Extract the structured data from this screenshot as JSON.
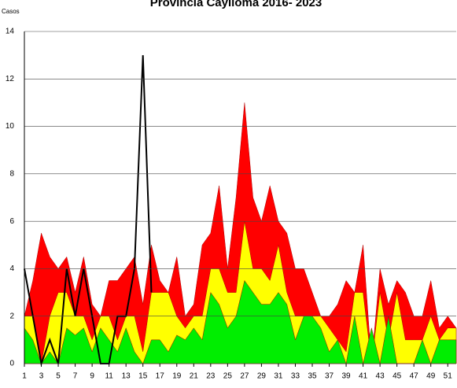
{
  "chart_data": {
    "type": "area",
    "title": "Provincia Caylloma 2016- 2023",
    "y_label": "Casos",
    "x": [
      1,
      2,
      3,
      4,
      5,
      6,
      7,
      8,
      9,
      10,
      11,
      12,
      13,
      14,
      15,
      16,
      17,
      18,
      19,
      20,
      21,
      22,
      23,
      24,
      25,
      26,
      27,
      28,
      29,
      30,
      31,
      32,
      33,
      34,
      35,
      36,
      37,
      38,
      39,
      40,
      41,
      42,
      43,
      44,
      45,
      46,
      47,
      48,
      49,
      50,
      51,
      52
    ],
    "xlim": [
      1,
      52
    ],
    "xticks": [
      1,
      3,
      5,
      7,
      9,
      11,
      13,
      15,
      17,
      19,
      21,
      23,
      25,
      27,
      29,
      31,
      33,
      35,
      37,
      39,
      41,
      43,
      45,
      47,
      49,
      51
    ],
    "ylim": [
      0,
      14
    ],
    "yticks": [
      0,
      2,
      4,
      6,
      8,
      10,
      12,
      14
    ],
    "grid": true,
    "series": [
      {
        "color": "#ff0000",
        "values": [
          2,
          3.5,
          5.5,
          4.5,
          4,
          4.5,
          3,
          4.5,
          2.5,
          2,
          3.5,
          3.5,
          4,
          4.5,
          2.5,
          5,
          3.5,
          3,
          4.5,
          2,
          2.5,
          5,
          5.5,
          7.5,
          4,
          7,
          11,
          7,
          6,
          7.5,
          6,
          5.5,
          4,
          4,
          3,
          2,
          2,
          2.5,
          3.5,
          3,
          5,
          0,
          4,
          2.5,
          3.5,
          3,
          2,
          2,
          3.5,
          1.5,
          2,
          1.5
        ]
      },
      {
        "color": "#ffff00",
        "values": [
          2,
          2,
          0,
          2,
          3,
          3,
          2,
          2,
          1,
          2,
          2,
          1,
          2,
          2,
          0.5,
          3,
          3,
          3,
          2,
          1.5,
          2,
          2,
          4,
          4,
          3,
          3,
          6,
          4,
          4,
          3.5,
          5,
          3,
          2,
          2,
          2,
          2,
          1.5,
          1,
          0.5,
          3,
          3,
          0,
          3,
          1,
          3,
          1,
          1,
          1,
          2,
          1,
          1.5,
          1.5
        ]
      },
      {
        "color": "#00ee00",
        "values": [
          1.5,
          1,
          0,
          0.5,
          0,
          1.5,
          1.2,
          1.5,
          0.5,
          1.5,
          1,
          0.5,
          1.5,
          0.5,
          0,
          1,
          1,
          0.5,
          1.2,
          1,
          1.5,
          1,
          3,
          2.5,
          1.5,
          2,
          3.5,
          3,
          2.5,
          2.5,
          3,
          2.5,
          1,
          2,
          2,
          1.5,
          0.5,
          1,
          0,
          2,
          0,
          1.5,
          0,
          2,
          0,
          0,
          0,
          1,
          0,
          1,
          1,
          1
        ]
      },
      {
        "color": "#000000",
        "line": true,
        "values": [
          4,
          2,
          0,
          1,
          0,
          4,
          2,
          4,
          2,
          0,
          0,
          2,
          2,
          4,
          13,
          3,
          null,
          null,
          null,
          null,
          null,
          null,
          null,
          null,
          null,
          null,
          null,
          null,
          null,
          null,
          null,
          null,
          null,
          null,
          null,
          null,
          null,
          null,
          null,
          null,
          null,
          null,
          null,
          null,
          null,
          null,
          null,
          null,
          null,
          null,
          null,
          null
        ]
      }
    ]
  }
}
